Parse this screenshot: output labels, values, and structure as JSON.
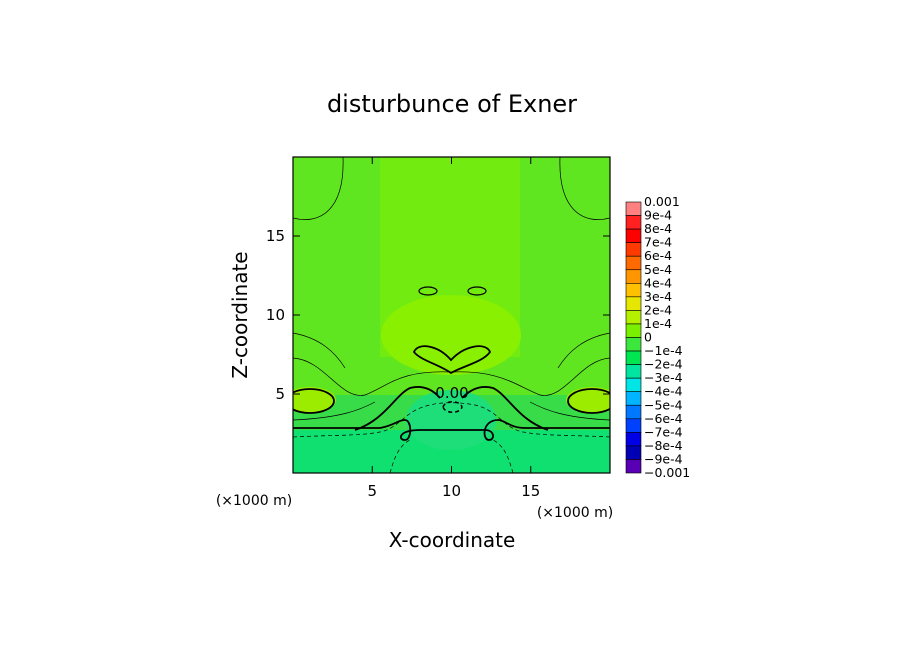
{
  "chart_data": {
    "type": "heatmap",
    "title": "disturbunce of Exner",
    "xlabel": "X-coordinate",
    "ylabel": "Z-coordinate",
    "x_unit": "(×1000 m)",
    "z_unit": "(×1000 m)",
    "xlim": [
      0,
      20
    ],
    "ylim": [
      0,
      20
    ],
    "xticks": [
      5,
      10,
      15
    ],
    "yticks": [
      5,
      10,
      15
    ],
    "contour_label": "0.00",
    "colorbar_labels": [
      "0.001",
      "9e-4",
      "8e-4",
      "7e-4",
      "6e-4",
      "5e-4",
      "4e-4",
      "3e-4",
      "2e-4",
      "1e-4",
      "0",
      "−1e-4",
      "−2e-4",
      "−3e-4",
      "−4e-4",
      "−5e-4",
      "−6e-4",
      "−7e-4",
      "−8e-4",
      "−9e-4",
      "−0.001"
    ],
    "colorbar_colors": [
      "#ff8080",
      "#ff2020",
      "#ff0000",
      "#ff3a00",
      "#ff6a00",
      "#ff9600",
      "#ffc000",
      "#e6e600",
      "#b4f000",
      "#78f000",
      "#3ce63c",
      "#00e650",
      "#00e6a0",
      "#00e6e6",
      "#00b4ff",
      "#0078ff",
      "#0040ff",
      "#0000e6",
      "#0000b4",
      "#5a00b4"
    ]
  }
}
